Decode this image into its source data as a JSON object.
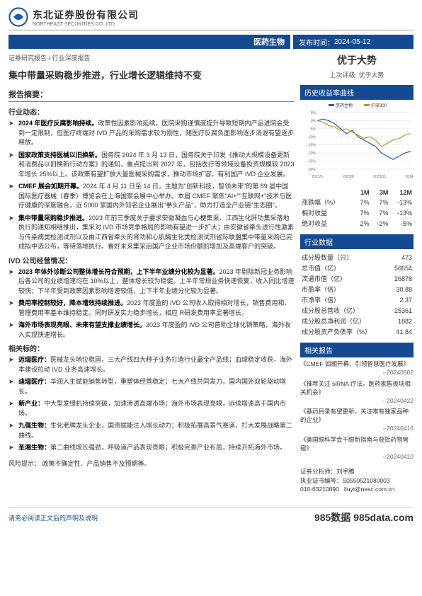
{
  "company": {
    "cn": "东北证券股份有限公司",
    "en": "NORTHEAST SECURITIES CO.,LTD.",
    "logo_color": "#1a5aa8"
  },
  "bars": {
    "sector": "医药生物",
    "pub_label": "发布时间：",
    "pub_date": "2024-05-12"
  },
  "doc_type": "证券研究报告 / 行业深度报告",
  "title": "集中带量采购稳步推进，行业增长逻辑维持不变",
  "rating": {
    "main": "优于大势",
    "prev": "上次评级: 优于大势"
  },
  "abstract_head": "报告摘要：",
  "sec1_head": "行业动态：",
  "sec1_bullets": [
    {
      "b": "2024 年医疗反腐影响持续。",
      "t": "政策性因素影响延续，医院采购谨慎度提升导致短期内产品进院会受到一定限制，但医疗终端对 IVD 产品的采购需求较为刚性，随医疗反腐负面影响逐步消退有望逐步释放。"
    },
    {
      "b": "国家政策支持医械以旧换新。",
      "t": "国务院 2024 年 3 月 13 日，国务院关于印发《推动大规模设备更新和消费品以旧换新行动方案》的通知，重点提出到 2027 年，包括医疗等领域设备投资规模较 2023 年增长 25%以上。该政策有望扩放大量医械采购需求，推动市场扩容，有利国产 IVD 企业发展。"
    },
    {
      "b": "CMEF 展会如期开幕。",
      "t": "2024 年 4 月 11 日至 14 日，主题为\"创新科技，智领未来\"的第 89 届中国国际医疗器械（春季）博览会在上海国家会展中心举办。本届 CMEF 聚焦\"AI+\"\"互联网+\"技术与医疗健康的深度融合，近 5000 家国内外知名企业展出\"拳头产品\"，助力打造全产业链\"生态圈\"。"
    },
    {
      "b": "集中带量采购稳步推进。",
      "t": "2023 年前三季度关于要求安徽凝血与心梗集采、江西生化肝功集采落地执行的通知相继推出，集采对 IVD 市场竞争格局的影响有望进一步扩大；由安徽省牵头进行性激素与传染病类检测试剂以及由江西省牵头的肾功和心肌酶生化类检测试剂省际联盟集中带量采购已完成拟中选公布，等待落地执行。看好未来集采后国产企业市场份额的增加及高端客户的突破。"
    }
  ],
  "sec2_head": "IVD 公司经营情况：",
  "sec2_bullets": [
    {
      "b": "2023 年体外诊断公司整体增长符合预期，上下半年业绩分化较为显著。",
      "t": "2023 年剔除新冠业务影响后各公司的业绩增速均在 10%以上，整体增长较为稳健。上半年常规业务快速恢复，收入同比增速较快；下半年受到政策因素影响增速较低，上下半年业绩分化较为显著。"
    },
    {
      "b": "费用率控制较好，降本增效持续推进。",
      "t": "2023 年度盈的 IVD 公司收入取得相对增长，销售费用和、管理费用率基本维持稳定。同时研发实力稳步增长，相应 R研发费用率显著增长。"
    },
    {
      "b": "海外市场表现亮眼、未来有望支撑业绩增长。",
      "t": "2023 年度盈的 IVD 公司普助全球化销策略，海外收入实现快速增长。"
    }
  ],
  "sec3_head": "相关标的：",
  "sec3_bullets": [
    {
      "b": "迈瑞医疗：",
      "t": "医械龙头地位稳固，三大产线四大种子业务打造行业最全产品线；血球稳定收获，海外本建设拉动 IVD 业务高速增长。"
    },
    {
      "b": "迪瑞医疗：",
      "t": "华润入主赋能销售转型，重塑体经营稳定；七大产线共同发力，国内国外双轮驱动增长。"
    },
    {
      "b": "新产业：",
      "t": "中大型发绿机持续突破，加速渗透高端市场；海外市场表现亮眼，远续增速高于国内市场。"
    },
    {
      "b": "九强生物：",
      "t": "生化老牌龙头企业，国资赋能注入增长动力；积极拓展高景气赛道，打大发展战略第二曲线。"
    },
    {
      "b": "圣湘生物：",
      "t": "第二曲线增长强劲，呼吸道产品表现亮眼；积极完善产业布局，持续开拓海外市场。"
    }
  ],
  "risk_label": "风险提示：",
  "risk_text": "政策不确定性、产品销售不及预期等。",
  "chart_panel": {
    "head": "历史收益率曲线",
    "legend": [
      "医药生物",
      "沪深300"
    ],
    "colors": [
      "#1e5fb4",
      "#d98b2a"
    ],
    "x_labels": [
      "2023/5",
      "2023/8",
      "2023/11",
      "2024/2"
    ],
    "y_ticks": [
      5,
      0,
      -5,
      -10,
      -15,
      -20,
      -25,
      -30
    ],
    "series_a": [
      0,
      1,
      0,
      -2,
      -5,
      -8,
      -6,
      -10,
      -12,
      -14,
      -16,
      -20,
      -22,
      -24,
      -22,
      -20,
      -19
    ],
    "series_b": [
      0,
      -1,
      -3,
      -4,
      -6,
      -5,
      -7,
      -9,
      -11,
      -10,
      -12,
      -16,
      -14,
      -12,
      -11,
      -9,
      -8
    ],
    "bg": "#ffffff",
    "grid": "#dddddd"
  },
  "returns": {
    "cols": [
      "",
      "1M",
      "3M",
      "12M"
    ],
    "rows": [
      [
        "涨跌幅（%）",
        "7%",
        "7%",
        "-13%"
      ],
      [
        "相对收益",
        "7%",
        "7%",
        "-13%"
      ],
      [
        "绝对收益",
        "2%",
        "-2%",
        "-5%"
      ]
    ]
  },
  "ind_head": "行业数据",
  "ind_rows": [
    [
      "成分股数量（只）",
      "473"
    ],
    [
      "总市值（亿）",
      "56654"
    ],
    [
      "流通市值（亿）",
      "26878"
    ],
    [
      "市盈率（倍）",
      "30.88"
    ],
    [
      "市净率（倍）",
      "2.37"
    ],
    [
      "成分股总营收（亿）",
      "25361"
    ],
    [
      "成分股总净利润（亿）",
      "1882"
    ],
    [
      "成分股资产负债率（%）",
      "41.84"
    ]
  ],
  "reports_head": "相关报告",
  "reports": [
    {
      "t": "《CMEF 如期开幕，引领智慧医疗发展》",
      "d": "--20240502"
    },
    {
      "t": "《推荐关注 siRNA 疗法，医药家售板块相关机会》",
      "d": "--20240422"
    },
    {
      "t": "《基药目录有望更新，关注唯有独家品种的企业》",
      "d": "--20240416"
    },
    {
      "t": "《美国眼科学会千眼新指南与获批药物管窥》",
      "d": "--20240410"
    }
  ],
  "analyst": {
    "label": "证券分析师：刘宇腾",
    "cert": "执业证书编号：S0550521080003",
    "phone": "010-63210890",
    "email": "liuyt@nesc.com.cn"
  },
  "footer": {
    "left": "请务必阅读正文后的声明及说明",
    "right": "985数据  985data.com"
  }
}
